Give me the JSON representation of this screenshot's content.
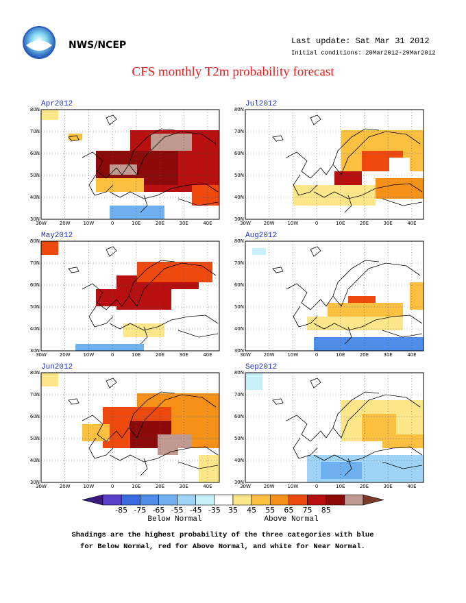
{
  "header": {
    "agency": "NWS/NCEP",
    "last_update": "Last update: Sat Mar 31 2012",
    "initial_conditions": "Initial conditions: 20Mar2012-29Mar2012"
  },
  "title": "CFS monthly T2m probability forecast",
  "panels": [
    {
      "label": "Apr2012"
    },
    {
      "label": "Jul2012"
    },
    {
      "label": "May2012"
    },
    {
      "label": "Aug2012"
    },
    {
      "label": "Jun2012"
    },
    {
      "label": "Sep2012"
    }
  ],
  "axes": {
    "lat_labels": [
      "80N",
      "70N",
      "60N",
      "50N",
      "40N",
      "30N"
    ],
    "lon_labels": [
      "30W",
      "20W",
      "10W",
      "0",
      "10E",
      "20E",
      "30E",
      "40E"
    ]
  },
  "colorbar": {
    "labels": [
      "-85",
      "-75",
      "-65",
      "-55",
      "-45",
      "-35",
      "35",
      "45",
      "55",
      "65",
      "75",
      "85"
    ],
    "colors": [
      "#3a1a80",
      "#5a3fc8",
      "#3a6ae0",
      "#4f8ee8",
      "#6fb0f0",
      "#9fd4f6",
      "#c8f0fa",
      "#ffffff",
      "#fde68a",
      "#fbc040",
      "#f59018",
      "#ee4a10",
      "#b81010",
      "#8c0a0a",
      "#c09a90",
      "#7a3a2a"
    ],
    "below": "Below Normal",
    "above": "Above Normal"
  },
  "footnote": [
    "Shadings are the highest probability of the three categories with blue",
    "for Below Normal, red for Above Normal, and white for Near Normal."
  ]
}
